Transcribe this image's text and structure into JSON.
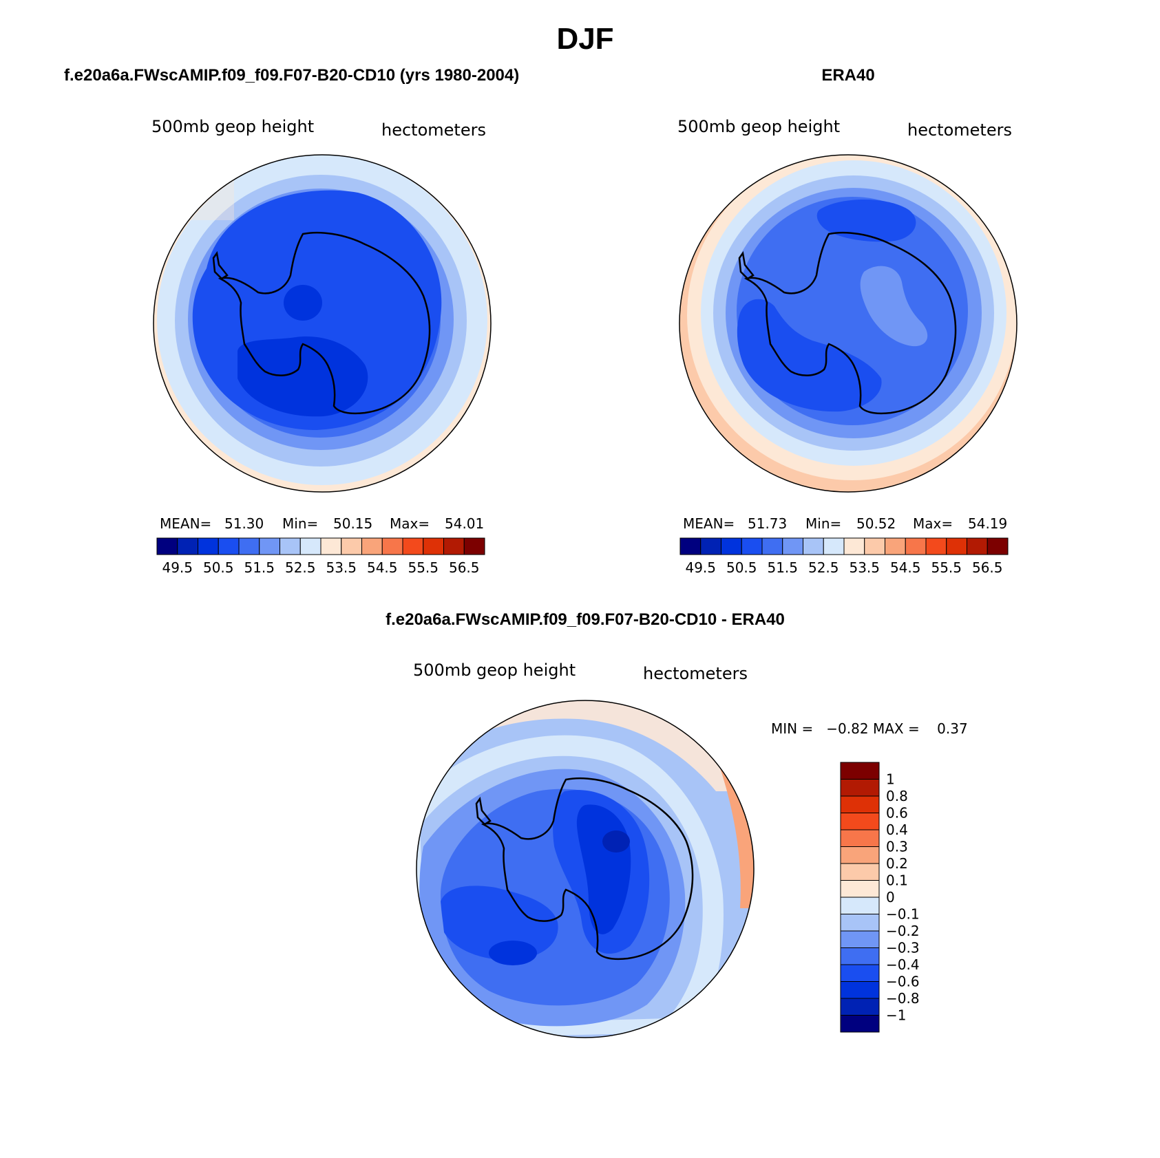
{
  "figure": {
    "title": "DJF",
    "left_panel_title": "f.e20a6a.FWscAMIP.f09_f09.F07-B20-CD10 (yrs 1980-2004)",
    "right_panel_title": "ERA40",
    "diff_panel_title": "f.e20a6a.FWscAMIP.f09_f09.F07-B20-CD10 - ERA40"
  },
  "colors": {
    "abs_scale": [
      "#00007f",
      "#0022b4",
      "#0033dd",
      "#1a4ef0",
      "#3f6ef2",
      "#7096f5",
      "#a8c4f7",
      "#d6e8fb",
      "#fde8d6",
      "#fccaaa",
      "#f9a47a",
      "#f7764a",
      "#f34a1c",
      "#de3106",
      "#b21a03",
      "#7c0000"
    ],
    "diff_scale": [
      "#00007f",
      "#0022b4",
      "#0033dd",
      "#1a4ef0",
      "#3f6ef2",
      "#7096f5",
      "#a8c4f7",
      "#d6e8fb",
      "#fde8d6",
      "#fccaaa",
      "#f9a47a",
      "#f7764a",
      "#f34a1c",
      "#de3106",
      "#b21a03",
      "#7c0000"
    ]
  },
  "chart_data": [
    {
      "type": "heatmap",
      "name": "model",
      "projection": "south-polar-stereographic",
      "variable_label": "500mb geop height",
      "units_label": "hectometers",
      "stats": {
        "mean_label": "MEAN=",
        "mean": "51.30",
        "min_label": "Min=",
        "min": "50.15",
        "max_label": "Max=",
        "max": "54.01"
      },
      "levels": [
        49.5,
        50,
        50.5,
        51,
        51.5,
        52,
        52.5,
        53,
        53.5,
        54,
        54.5,
        55,
        55.5,
        56,
        56.5
      ],
      "colorbar_labels": [
        "49.5",
        "50.5",
        "51.5",
        "52.5",
        "53.5",
        "54.5",
        "55.5",
        "56.5"
      ],
      "field_range": [
        50.15,
        54.01
      ]
    },
    {
      "type": "heatmap",
      "name": "obs",
      "projection": "south-polar-stereographic",
      "variable_label": "500mb geop height",
      "units_label": "hectometers",
      "stats": {
        "mean_label": "MEAN=",
        "mean": "51.73",
        "min_label": "Min=",
        "min": "50.52",
        "max_label": "Max=",
        "max": "54.19"
      },
      "levels": [
        49.5,
        50,
        50.5,
        51,
        51.5,
        52,
        52.5,
        53,
        53.5,
        54,
        54.5,
        55,
        55.5,
        56,
        56.5
      ],
      "colorbar_labels": [
        "49.5",
        "50.5",
        "51.5",
        "52.5",
        "53.5",
        "54.5",
        "55.5",
        "56.5"
      ],
      "field_range": [
        50.52,
        54.19
      ]
    },
    {
      "type": "heatmap",
      "name": "difference",
      "projection": "south-polar-stereographic",
      "variable_label": "500mb geop height",
      "units_label": "hectometers",
      "stats": {
        "text": "MIN =   −0.82 MAX =    0.37",
        "min": -0.82,
        "max": 0.37
      },
      "levels": [
        -1,
        -0.8,
        -0.6,
        -0.4,
        -0.3,
        -0.2,
        -0.1,
        0,
        0.1,
        0.2,
        0.3,
        0.4,
        0.6,
        0.8,
        1
      ],
      "colorbar_labels": [
        "1",
        "0.8",
        "0.6",
        "0.4",
        "0.3",
        "0.2",
        "0.1",
        "0",
        "−0.1",
        "−0.2",
        "−0.3",
        "−0.4",
        "−0.6",
        "−0.8",
        "−1"
      ]
    }
  ]
}
